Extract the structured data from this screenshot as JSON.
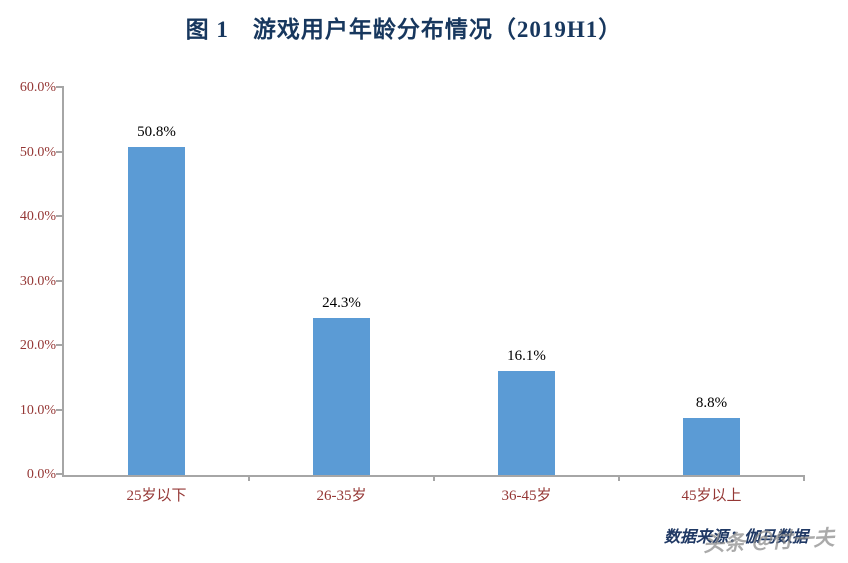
{
  "chart_data": {
    "type": "bar",
    "title": "图 1　游戏用户年龄分布情况（2019H1）",
    "categories": [
      "25岁以下",
      "26-35岁",
      "36-45岁",
      "45岁以上"
    ],
    "values": [
      50.8,
      24.3,
      16.1,
      8.8
    ],
    "value_labels": [
      "50.8%",
      "24.3%",
      "16.1%",
      "8.8%"
    ],
    "ylim": [
      0,
      60
    ],
    "yticks": [
      {
        "label": "0.0%",
        "value": 0
      },
      {
        "label": "10.0%",
        "value": 10
      },
      {
        "label": "20.0%",
        "value": 20
      },
      {
        "label": "30.0%",
        "value": 30
      },
      {
        "label": "40.0%",
        "value": 40
      },
      {
        "label": "50.0%",
        "value": 50
      },
      {
        "label": "60.0%",
        "value": 60
      }
    ],
    "xlabel": "",
    "ylabel": "",
    "grid": "off",
    "legend": "none",
    "bar_color": "#5B9BD5",
    "axis_label_color": "#953735",
    "title_color": "#17375E"
  },
  "footer": {
    "source": "数据来源：伽马数据",
    "watermark": "头条 ＠付一夫"
  }
}
